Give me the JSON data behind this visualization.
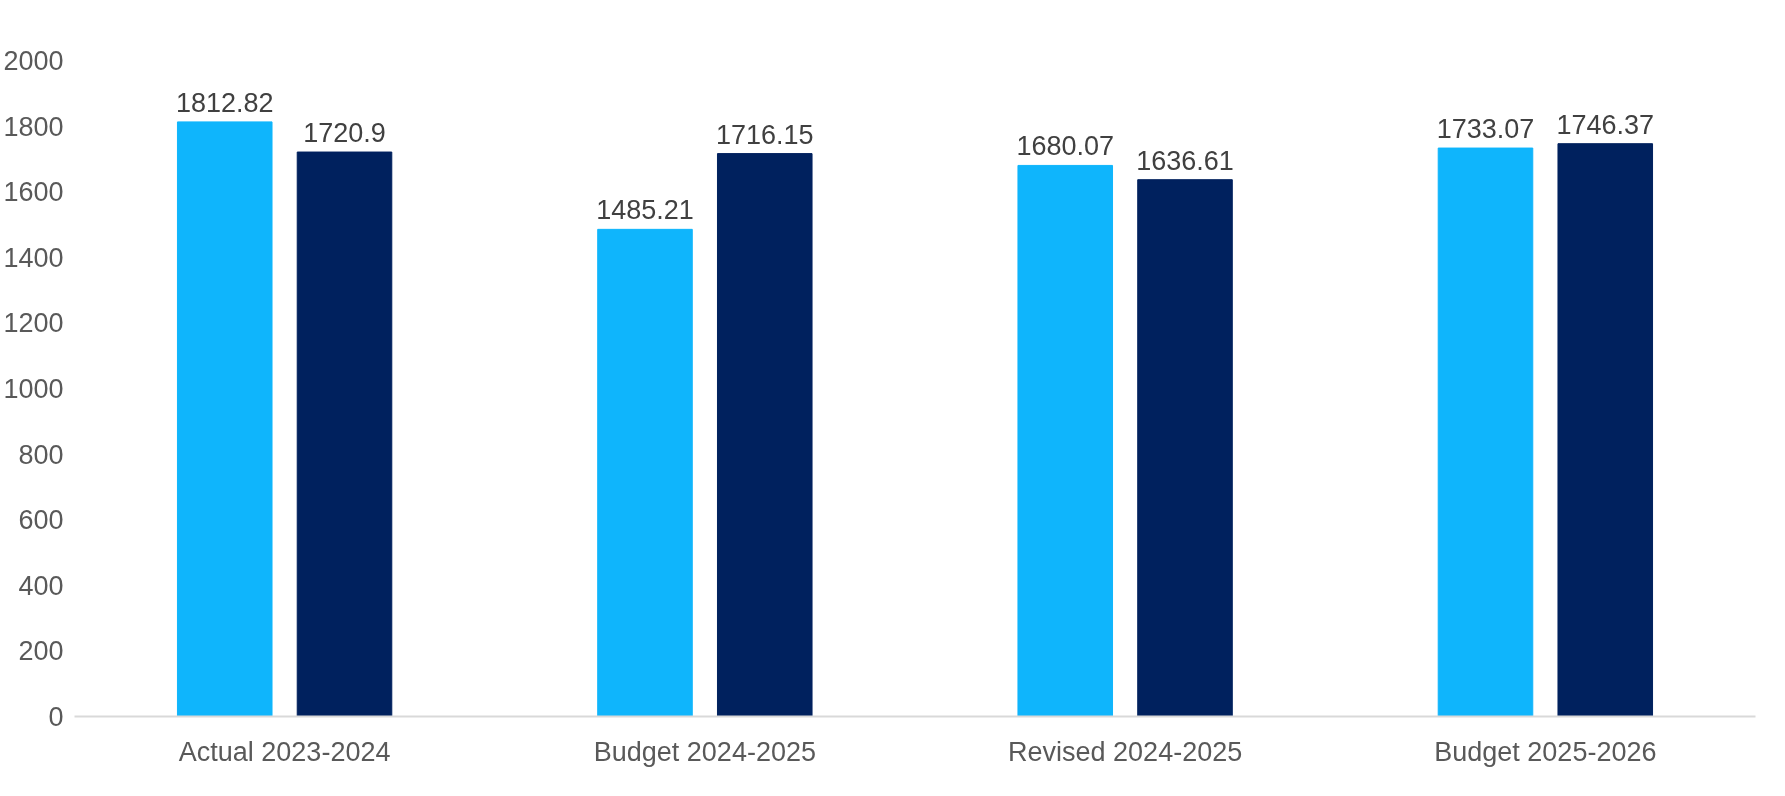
{
  "chart_data": {
    "type": "bar",
    "categories": [
      "Actual 2023-2024",
      "Budget 2024-2025",
      "Revised 2024-2025",
      "Budget 2025-2026"
    ],
    "series": [
      {
        "color": "#0fb5fc",
        "values": [
          1812.82,
          1485.21,
          1680.07,
          1733.07
        ]
      },
      {
        "color": "#00215e",
        "values": [
          1720.9,
          1716.15,
          1636.61,
          1746.37
        ]
      }
    ],
    "ylim": [
      0,
      2000
    ],
    "yticks": [
      0,
      200,
      400,
      600,
      800,
      1000,
      1200,
      1400,
      1600,
      1800,
      2000
    ],
    "grid": false,
    "data_labels": true
  }
}
